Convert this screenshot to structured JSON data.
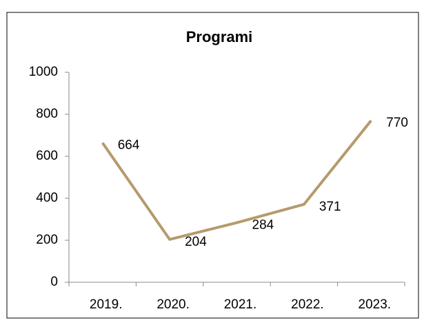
{
  "chart_data": {
    "type": "line",
    "title": "Programi",
    "categories": [
      "2019.",
      "2020.",
      "2021.",
      "2022.",
      "2023."
    ],
    "values": [
      664,
      204,
      284,
      371,
      770
    ],
    "color": "#b59a6c",
    "ylim": [
      0,
      1000
    ],
    "yticks": [
      0,
      200,
      400,
      600,
      800,
      1000
    ]
  }
}
